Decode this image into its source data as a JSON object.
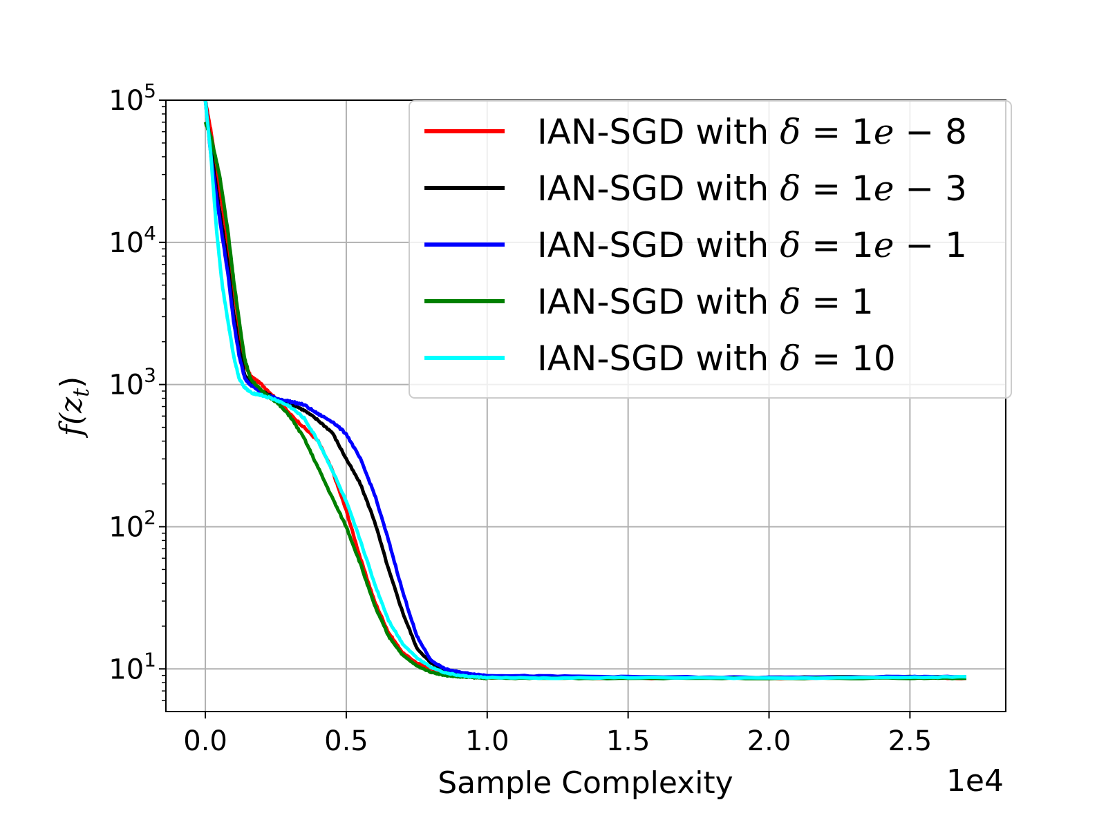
{
  "chart_data": {
    "type": "line",
    "xlabel": "Sample Complexity",
    "x_offset_label": "1e4",
    "ylabel_main": "f(z",
    "ylabel_sub": "t",
    "ylabel_end": ")",
    "yscale": "log",
    "xlim": [
      -0.14,
      2.84
    ],
    "ylim_log10": [
      0.7,
      5.0
    ],
    "grid": true,
    "legend_position": "upper-right",
    "x_ticks": [
      {
        "value": 0.0,
        "label": "0.0"
      },
      {
        "value": 0.5,
        "label": "0.5"
      },
      {
        "value": 1.0,
        "label": "1.0"
      },
      {
        "value": 1.5,
        "label": "1.5"
      },
      {
        "value": 2.0,
        "label": "2.0"
      },
      {
        "value": 2.5,
        "label": "2.5"
      }
    ],
    "y_ticks": [
      {
        "exp": 1,
        "base": "10",
        "sup": "1"
      },
      {
        "exp": 2,
        "base": "10",
        "sup": "2"
      },
      {
        "exp": 3,
        "base": "10",
        "sup": "3"
      },
      {
        "exp": 4,
        "base": "10",
        "sup": "4"
      },
      {
        "exp": 5,
        "base": "10",
        "sup": "5"
      }
    ],
    "series": [
      {
        "name": "IAN-SGD with δ = 1e − 8",
        "label_prefix": "IAN-SGD with ",
        "delta_value": "1",
        "delta_exp": "8",
        "has_e": true,
        "color": "#ff0000",
        "x": [
          0.0,
          0.02,
          0.05,
          0.08,
          0.1,
          0.12,
          0.14,
          0.16,
          0.2,
          0.25,
          0.3,
          0.35,
          0.4,
          0.45,
          0.5,
          0.55,
          0.6,
          0.65,
          0.7,
          0.75,
          0.8,
          0.85,
          0.9,
          0.95,
          1.0,
          1.2,
          1.5,
          2.0,
          2.5,
          2.7
        ],
        "y": [
          100000,
          60000,
          25000,
          10000,
          5000,
          2500,
          1400,
          1150,
          1000,
          800,
          620,
          500,
          400,
          250,
          130,
          60,
          30,
          18,
          13,
          11,
          10,
          9.3,
          9.0,
          8.8,
          8.7,
          8.7,
          8.6,
          8.6,
          8.7,
          8.6
        ]
      },
      {
        "name": "IAN-SGD with δ = 1e − 3",
        "label_prefix": "IAN-SGD with ",
        "delta_value": "1",
        "delta_exp": "3",
        "has_e": true,
        "color": "#000000",
        "x": [
          0.0,
          0.02,
          0.05,
          0.08,
          0.1,
          0.12,
          0.14,
          0.16,
          0.2,
          0.25,
          0.3,
          0.35,
          0.4,
          0.45,
          0.5,
          0.55,
          0.6,
          0.65,
          0.7,
          0.75,
          0.8,
          0.85,
          0.9,
          0.95,
          1.0,
          1.2,
          1.5,
          2.0,
          2.5,
          2.7
        ],
        "y": [
          100000,
          45000,
          17000,
          7000,
          3200,
          1800,
          1150,
          1050,
          900,
          800,
          740,
          660,
          560,
          460,
          300,
          200,
          110,
          50,
          25,
          14,
          11,
          9.7,
          9.2,
          9.0,
          8.9,
          8.8,
          8.7,
          8.7,
          8.8,
          8.7
        ]
      },
      {
        "name": "IAN-SGD with δ = 1e − 1",
        "label_prefix": "IAN-SGD with ",
        "delta_value": "1",
        "delta_exp": "1",
        "has_e": true,
        "color": "#0000ff",
        "x": [
          0.0,
          0.02,
          0.05,
          0.08,
          0.1,
          0.12,
          0.14,
          0.16,
          0.2,
          0.25,
          0.3,
          0.35,
          0.4,
          0.45,
          0.5,
          0.55,
          0.6,
          0.65,
          0.7,
          0.75,
          0.8,
          0.85,
          0.9,
          0.95,
          1.0,
          1.2,
          1.5,
          2.0,
          2.5,
          2.7
        ],
        "y": [
          100000,
          40000,
          15000,
          6000,
          2800,
          1600,
          1100,
          1000,
          880,
          800,
          760,
          720,
          620,
          550,
          450,
          300,
          170,
          80,
          35,
          17,
          11.5,
          10,
          9.5,
          9.2,
          9.0,
          8.9,
          8.8,
          8.7,
          8.8,
          8.8
        ]
      },
      {
        "name": "IAN-SGD with δ = 1",
        "label_prefix": "IAN-SGD with ",
        "delta_value": "1",
        "delta_exp": "",
        "has_e": false,
        "color": "#008000",
        "x": [
          0.0,
          0.02,
          0.05,
          0.08,
          0.1,
          0.12,
          0.14,
          0.16,
          0.2,
          0.25,
          0.3,
          0.35,
          0.4,
          0.45,
          0.5,
          0.55,
          0.6,
          0.65,
          0.7,
          0.75,
          0.8,
          0.85,
          0.9,
          0.95,
          1.0,
          1.2,
          1.5,
          2.0,
          2.5,
          2.7
        ],
        "y": [
          70000,
          55000,
          30000,
          12000,
          5500,
          2800,
          1500,
          1100,
          900,
          760,
          600,
          420,
          260,
          160,
          100,
          55,
          28,
          17,
          12.5,
          10.5,
          9.5,
          9.0,
          8.8,
          8.7,
          8.6,
          8.6,
          8.6,
          8.6,
          8.6,
          8.6
        ]
      },
      {
        "name": "IAN-SGD with δ = 10",
        "label_prefix": "IAN-SGD with ",
        "delta_value": "10",
        "delta_exp": "",
        "has_e": false,
        "color": "#00ffff",
        "x": [
          0.0,
          0.02,
          0.04,
          0.06,
          0.08,
          0.1,
          0.12,
          0.14,
          0.16,
          0.2,
          0.25,
          0.3,
          0.35,
          0.4,
          0.45,
          0.5,
          0.55,
          0.6,
          0.65,
          0.7,
          0.75,
          0.8,
          0.85,
          0.9,
          0.95,
          1.0,
          1.2,
          1.5,
          2.0,
          2.5,
          2.7
        ],
        "y": [
          100000,
          40000,
          12000,
          5000,
          2800,
          1600,
          1100,
          950,
          880,
          840,
          780,
          700,
          580,
          400,
          250,
          150,
          80,
          40,
          22,
          15,
          12,
          10.3,
          9.4,
          9.0,
          8.8,
          8.7,
          8.6,
          8.7,
          8.6,
          8.7,
          8.8
        ]
      }
    ]
  }
}
